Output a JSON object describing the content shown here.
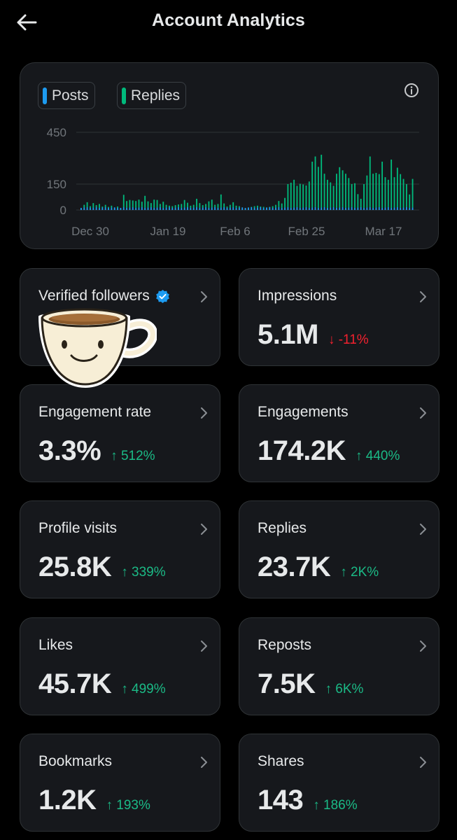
{
  "header": {
    "title": "Account Analytics",
    "back_icon": "arrow-left-icon"
  },
  "chart": {
    "legend": [
      {
        "label": "Posts",
        "color": "#1d9bf0"
      },
      {
        "label": "Replies",
        "color": "#00ba7c"
      }
    ],
    "info_icon": "info-icon"
  },
  "chart_data": {
    "type": "bar",
    "y_ticks": [
      0,
      150,
      450
    ],
    "x_ticks": [
      "Dec 30",
      "Jan 19",
      "Feb 6",
      "Feb 25",
      "Mar 17"
    ],
    "ylim": [
      0,
      450
    ],
    "grid": true,
    "series": [
      {
        "name": "Posts",
        "color": "#1d9bf0"
      },
      {
        "name": "Replies",
        "color": "#00ba7c"
      }
    ],
    "values": [
      12,
      30,
      45,
      22,
      40,
      28,
      35,
      20,
      30,
      18,
      25,
      15,
      20,
      12,
      88,
      52,
      58,
      55,
      52,
      60,
      48,
      82,
      50,
      40,
      60,
      58,
      35,
      48,
      30,
      25,
      22,
      28,
      32,
      35,
      58,
      42,
      25,
      30,
      65,
      40,
      28,
      35,
      50,
      60,
      30,
      35,
      90,
      38,
      20,
      30,
      45,
      25,
      22,
      15,
      12,
      15,
      18,
      22,
      25,
      20,
      18,
      15,
      18,
      22,
      30,
      52,
      38,
      70,
      150,
      158,
      175,
      140,
      152,
      148,
      142,
      165,
      280,
      310,
      250,
      320,
      210,
      175,
      160,
      140,
      210,
      248,
      230,
      210,
      185,
      150,
      155,
      92,
      65,
      150,
      200,
      310,
      210,
      215,
      208,
      280,
      190,
      175,
      292,
      190,
      245,
      208,
      180,
      150,
      90,
      180
    ]
  },
  "stats": [
    {
      "label": "Verified followers",
      "value": "",
      "change": "",
      "verified_icon": "verified-badge-icon"
    },
    {
      "label": "Impressions",
      "value": "5.1M",
      "change": "↓ -11%",
      "direction": "down"
    },
    {
      "label": "Engagement rate",
      "value": "3.3%",
      "change": "↑ 512%",
      "direction": "up"
    },
    {
      "label": "Engagements",
      "value": "174.2K",
      "change": "↑ 440%",
      "direction": "up"
    },
    {
      "label": "Profile visits",
      "value": "25.8K",
      "change": "↑ 339%",
      "direction": "up"
    },
    {
      "label": "Replies",
      "value": "23.7K",
      "change": "↑ 2K%",
      "direction": "up"
    },
    {
      "label": "Likes",
      "value": "45.7K",
      "change": "↑ 499%",
      "direction": "up"
    },
    {
      "label": "Reposts",
      "value": "7.5K",
      "change": "↑ 6K%",
      "direction": "up"
    },
    {
      "label": "Bookmarks",
      "value": "1.2K",
      "change": "↑ 193%",
      "direction": "up"
    },
    {
      "label": "Shares",
      "value": "143",
      "change": "↑ 186%",
      "direction": "up"
    }
  ],
  "sticker": {
    "icon": "coffee-cup-sticker-icon"
  }
}
